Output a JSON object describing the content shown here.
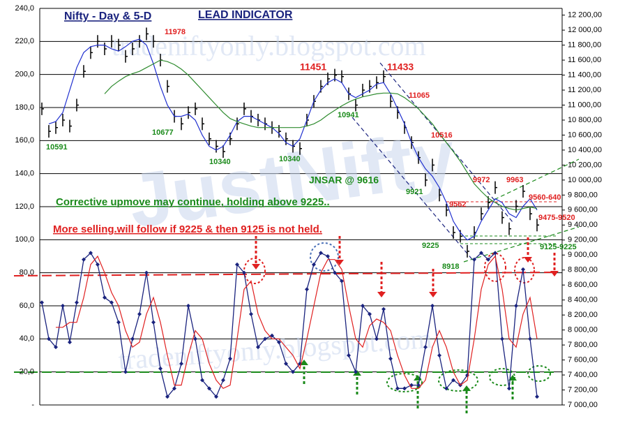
{
  "chart_data": {
    "type": "line",
    "title": "Nifty - Day &  5-D",
    "subtitle": "LEAD INDICATOR",
    "watermarks": [
      "tradeniftyonly.blogspot.com",
      "JustNifty",
      "tradeniftyonly.blogspot.com"
    ],
    "annotations": [
      "11978",
      "11451",
      "11433",
      "11065",
      "10516",
      "9972",
      "9963",
      "9562",
      "9560-640",
      "9475-9520",
      "10591",
      "10677",
      "10340",
      "10340",
      "10941",
      "9921",
      "9225",
      "8918",
      "9125-9225",
      "JNSAR @ 9616",
      "Corrective upmove may continue, holding above 9225..",
      "More selling.will follow if 9225 & then 9125 is not held."
    ],
    "ylim": [
      0,
      240
    ],
    "yticks": [
      {
        "value": 0,
        "label": "-"
      },
      {
        "value": 20,
        "label": "20,0"
      },
      {
        "value": 40,
        "label": "40,0"
      },
      {
        "value": 60,
        "label": "60,0"
      },
      {
        "value": 80,
        "label": "80,0"
      },
      {
        "value": 100,
        "label": "100,0"
      },
      {
        "value": 120,
        "label": "120,0"
      },
      {
        "value": 140,
        "label": "140,0"
      },
      {
        "value": 160,
        "label": "160,0"
      },
      {
        "value": 180,
        "label": "180,0"
      },
      {
        "value": 200,
        "label": "200,0"
      },
      {
        "value": 220,
        "label": "220,0"
      },
      {
        "value": 240,
        "label": "240,0"
      }
    ],
    "y2lim": [
      7000,
      12290
    ],
    "y2ticks": [
      {
        "value": 7000,
        "label": "7 000,00"
      },
      {
        "value": 7200,
        "label": "7 200,00"
      },
      {
        "value": 7400,
        "label": "7 400,00"
      },
      {
        "value": 7600,
        "label": "7 600,00"
      },
      {
        "value": 7800,
        "label": "7 800,00"
      },
      {
        "value": 8000,
        "label": "8 000,00"
      },
      {
        "value": 8200,
        "label": "8 200,00"
      },
      {
        "value": 8400,
        "label": "8 400,00"
      },
      {
        "value": 8600,
        "label": "8 600,00"
      },
      {
        "value": 8800,
        "label": "8 800,00"
      },
      {
        "value": 9000,
        "label": "9 000,00"
      },
      {
        "value": 9200,
        "label": "9 200,00"
      },
      {
        "value": 9400,
        "label": "9 400,00"
      },
      {
        "value": 9600,
        "label": "9 600,00"
      },
      {
        "value": 9800,
        "label": "9 800,00"
      },
      {
        "value": 10000,
        "label": "10 000,00"
      },
      {
        "value": 10200,
        "label": "10 200,00"
      },
      {
        "value": 10400,
        "label": "10 400,00"
      },
      {
        "value": 10600,
        "label": "10 600,00"
      },
      {
        "value": 10800,
        "label": "10 800,00"
      },
      {
        "value": 11000,
        "label": "11 000,00"
      },
      {
        "value": 11200,
        "label": "11 200,00"
      },
      {
        "value": 11400,
        "label": "11 400,00"
      },
      {
        "value": 11600,
        "label": "11 600,00"
      },
      {
        "value": 11800,
        "label": "11 800,00"
      },
      {
        "value": 12000,
        "label": "12 000,00"
      },
      {
        "value": 12200,
        "label": "12 200,00"
      }
    ],
    "grid": true,
    "series": [
      {
        "style": "bars",
        "axis": "y2",
        "color": "#000000",
        "values": [
          10950,
          10650,
          10700,
          10800,
          10720,
          11000,
          11450,
          11700,
          11850,
          11750,
          11850,
          11800,
          11650,
          11750,
          11850,
          11950,
          11850,
          11600,
          11250,
          10850,
          10750,
          10900,
          10950,
          10750,
          10550,
          10450,
          10380,
          10550,
          10750,
          10950,
          10850,
          10800,
          10750,
          10700,
          10650,
          10550,
          10450,
          10420,
          10800,
          11050,
          11250,
          11350,
          11400,
          11380,
          11150,
          11000,
          11200,
          11250,
          11300,
          11380,
          11050,
          10900,
          10700,
          10500,
          10300,
          10000,
          10200,
          9800,
          9600,
          9300,
          9250,
          9050,
          9300,
          9550,
          9700,
          9900,
          9500,
          9350,
          9650,
          9850,
          9550,
          9400
        ]
      },
      {
        "style": "line",
        "axis": "y2",
        "color": "#1f2fcf",
        "values": [
          null,
          10750,
          10780,
          10900,
          11200,
          11500,
          11700,
          11780,
          11800,
          11800,
          11750,
          11720,
          11780,
          11850,
          11880,
          11800,
          11550,
          11250,
          11000,
          10850,
          10850,
          10880,
          10800,
          10600,
          10450,
          10400,
          10450,
          10600,
          10780,
          10850,
          10850,
          10800,
          10750,
          10700,
          10620,
          10500,
          10450,
          10550,
          10800,
          11050,
          11200,
          11300,
          11350,
          11300,
          11150,
          11100,
          11150,
          11200,
          11280,
          11300,
          11150,
          10950,
          10750,
          10500,
          10300,
          10150,
          10050,
          9900,
          9700,
          9450,
          9300,
          9200,
          9250,
          9450,
          9600,
          9750,
          9700,
          9550,
          9500,
          9650,
          9750,
          9600
        ]
      },
      {
        "style": "line",
        "axis": "y2",
        "color": "#2e8b2e",
        "values": [
          null,
          null,
          null,
          null,
          null,
          null,
          null,
          null,
          null,
          11150,
          11250,
          11320,
          11380,
          11420,
          11450,
          11500,
          11550,
          11600,
          11580,
          11540,
          11480,
          11400,
          11300,
          11200,
          11100,
          11000,
          10900,
          10820,
          10780,
          10750,
          10720,
          10700,
          10700,
          10700,
          10700,
          10700,
          10700,
          10700,
          10720,
          10750,
          10800,
          10870,
          10930,
          10990,
          11040,
          11080,
          11110,
          11130,
          11150,
          11160,
          11160,
          11150,
          11100,
          11030,
          10950,
          10850,
          10750,
          10620,
          10500,
          10380,
          10250,
          10100,
          9950,
          9850,
          9760,
          9700,
          9650,
          9620,
          9600,
          9620,
          9640,
          9620
        ]
      },
      {
        "style": "markers",
        "color": "#1a237e",
        "values": [
          62,
          40,
          35,
          60,
          38,
          62,
          88,
          92,
          85,
          65,
          62,
          50,
          20,
          40,
          55,
          80,
          50,
          22,
          5,
          10,
          25,
          60,
          40,
          15,
          10,
          5,
          15,
          28,
          85,
          80,
          55,
          35,
          40,
          42,
          38,
          25,
          20,
          25,
          70,
          85,
          92,
          90,
          80,
          75,
          30,
          20,
          60,
          55,
          40,
          58,
          28,
          10,
          10,
          12,
          12,
          35,
          60,
          30,
          10,
          15,
          12,
          18,
          88,
          92,
          88,
          92,
          40,
          10,
          60,
          82,
          40,
          5
        ]
      },
      {
        "style": "line",
        "color": "#e02020",
        "values": [
          null,
          null,
          47,
          47,
          50,
          50,
          65,
          85,
          90,
          80,
          68,
          60,
          45,
          35,
          38,
          55,
          65,
          50,
          30,
          12,
          12,
          30,
          45,
          40,
          25,
          15,
          10,
          12,
          40,
          70,
          75,
          55,
          45,
          40,
          40,
          35,
          30,
          22,
          40,
          60,
          80,
          88,
          88,
          82,
          60,
          40,
          35,
          48,
          52,
          50,
          45,
          30,
          18,
          10,
          10,
          15,
          35,
          45,
          35,
          20,
          12,
          15,
          40,
          70,
          85,
          90,
          70,
          40,
          35,
          55,
          65,
          40
        ]
      }
    ]
  }
}
